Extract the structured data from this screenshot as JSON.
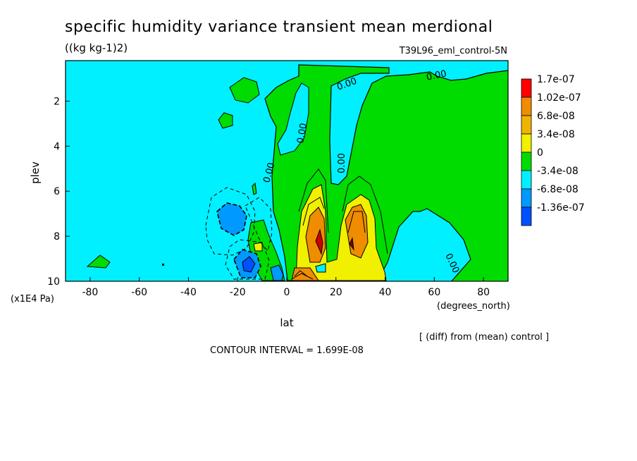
{
  "chart_data": {
    "type": "heatmap",
    "title": "specific humidity variance transient mean merdional",
    "units": "((kg kg-1)2)",
    "run_label": "T39L96_eml_control-5N",
    "xlabel": "lat",
    "xunits": "(degrees_north)",
    "ylabel": "plev",
    "yunits": "(x1E4 Pa)",
    "x_range": [
      -90,
      90
    ],
    "y_range": [
      10,
      0.2
    ],
    "x_ticks": [
      -80,
      -60,
      -40,
      -20,
      0,
      20,
      40,
      60,
      80
    ],
    "y_ticks": [
      2,
      4,
      6,
      8,
      10
    ],
    "note_diff": "[ (diff) from (mean) control ]",
    "contour_interval": "CONTOUR INTERVAL = 1.699E-08",
    "contour_label": "0.00",
    "colorbar": {
      "labels": [
        "1.7e-07",
        "1.02e-07",
        "6.8e-08",
        "3.4e-08",
        "0",
        "-3.4e-08",
        "-6.8e-08",
        "-1.36e-07"
      ],
      "colors": [
        "#ff0000",
        "#f08c00",
        "#f0b400",
        "#f0f000",
        "#00dc00",
        "#00f0ff",
        "#0099ff",
        "#0050ff"
      ]
    }
  }
}
